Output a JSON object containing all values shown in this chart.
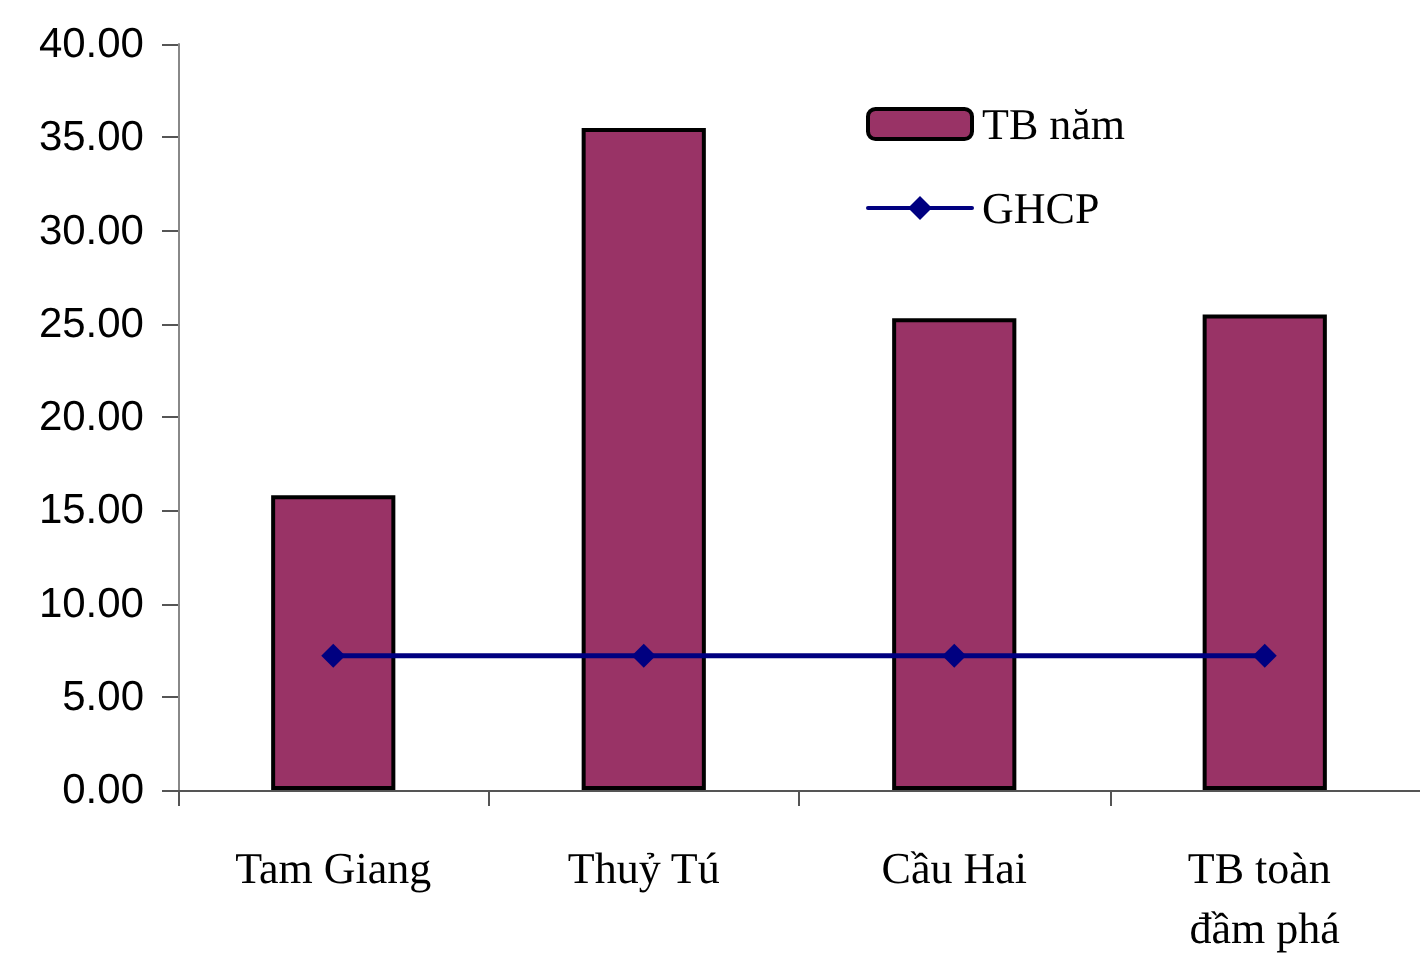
{
  "chart_data": {
    "type": "bar",
    "categories": [
      "Tam Giang",
      "Thuỷ Tú",
      "Cầu Hai",
      "TB toàn đầm phá"
    ],
    "series": [
      {
        "name": "TB năm",
        "color": "#993366",
        "values": [
          15.8,
          35.5,
          25.3,
          25.5
        ]
      },
      {
        "name": "GHCP",
        "type": "line",
        "color": "#000080",
        "values": [
          7.2,
          7.2,
          7.2,
          7.2
        ]
      }
    ],
    "ylim": [
      0,
      40
    ],
    "yticks": [
      {
        "value": 0,
        "label": "0.00"
      },
      {
        "value": 5,
        "label": "5.00"
      },
      {
        "value": 10,
        "label": "10.00"
      },
      {
        "value": 15,
        "label": "15.00"
      },
      {
        "value": 20,
        "label": "20.00"
      },
      {
        "value": 25,
        "label": "25.00"
      },
      {
        "value": 30,
        "label": "30.00"
      },
      {
        "value": 35,
        "label": "35.00"
      },
      {
        "value": 40,
        "label": "40.00"
      }
    ],
    "grid": false,
    "legend": "top right",
    "marker": "diamond"
  }
}
